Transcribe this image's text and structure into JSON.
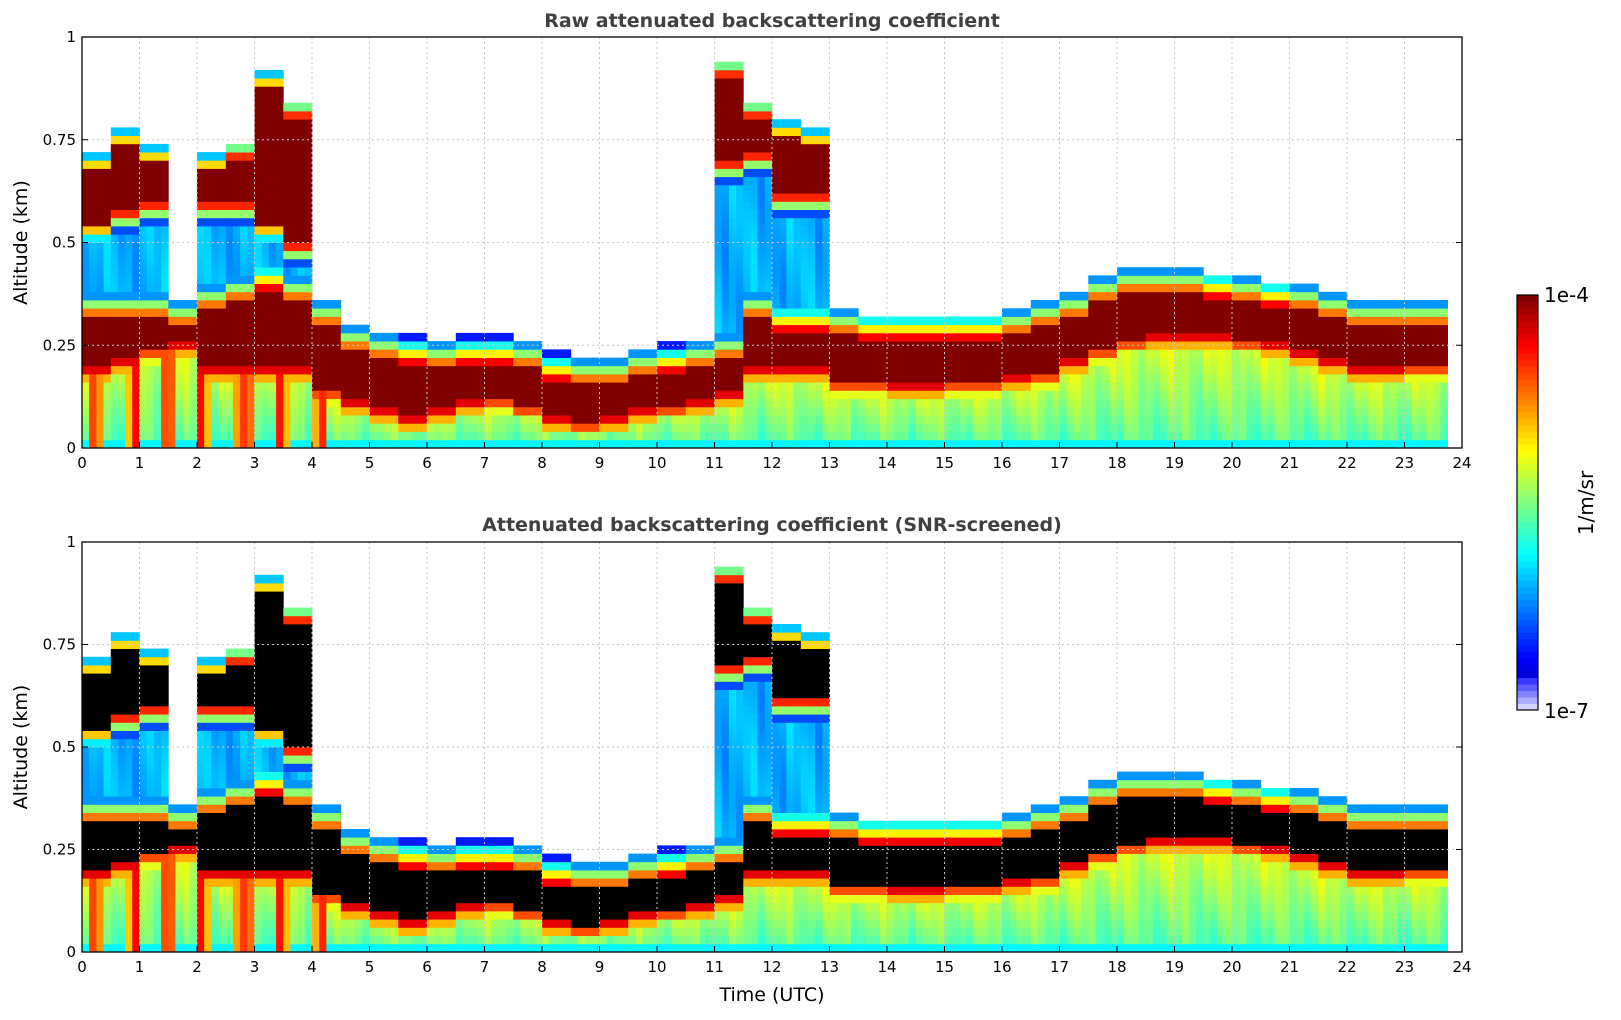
{
  "chart_data": [
    {
      "type": "heatmap",
      "title": "Raw attenuated backscattering coefficient",
      "xlabel": "",
      "ylabel": "Altitude (km)",
      "xlim": [
        0,
        24
      ],
      "ylim": [
        0,
        1
      ],
      "xticks": [
        "0",
        "1",
        "2",
        "3",
        "4",
        "5",
        "6",
        "7",
        "8",
        "9",
        "10",
        "11",
        "12",
        "13",
        "14",
        "15",
        "16",
        "17",
        "18",
        "19",
        "20",
        "21",
        "22",
        "23",
        "24"
      ],
      "yticks": [
        "0",
        "0.25",
        "0.5",
        "0.75",
        "1"
      ],
      "grid": true,
      "saturated_color": "#800000"
    },
    {
      "type": "heatmap",
      "title": "Attenuated backscattering coefficient (SNR-screened)",
      "xlabel": "Time (UTC)",
      "ylabel": "Altitude (km)",
      "xlim": [
        0,
        24
      ],
      "ylim": [
        0,
        1
      ],
      "xticks": [
        "0",
        "1",
        "2",
        "3",
        "4",
        "5",
        "6",
        "7",
        "8",
        "9",
        "10",
        "11",
        "12",
        "13",
        "14",
        "15",
        "16",
        "17",
        "18",
        "19",
        "20",
        "21",
        "22",
        "23",
        "24"
      ],
      "yticks": [
        "0",
        "0.25",
        "0.5",
        "0.75",
        "1"
      ],
      "grid": true,
      "saturated_color": "#000000"
    }
  ],
  "profile_data": {
    "time_step_h": 0.5,
    "time_end_h": 23.75,
    "main_layer_base_km": [
      0.2,
      0.22,
      0.25,
      0.26,
      0.2,
      0.2,
      0.2,
      0.2,
      0.15,
      0.12,
      0.1,
      0.08,
      0.1,
      0.12,
      0.13,
      0.11,
      0.08,
      0.07,
      0.08,
      0.1,
      0.11,
      0.12,
      0.14,
      0.2,
      0.2,
      0.2,
      0.17,
      0.17,
      0.16,
      0.16,
      0.17,
      0.17,
      0.18,
      0.19,
      0.22,
      0.25,
      0.27,
      0.28,
      0.28,
      0.28,
      0.27,
      0.26,
      0.24,
      0.22,
      0.2,
      0.2,
      0.21,
      0.21
    ],
    "main_layer_top_km": [
      0.38,
      0.38,
      0.38,
      0.36,
      0.4,
      0.42,
      0.45,
      0.42,
      0.36,
      0.3,
      0.28,
      0.27,
      0.26,
      0.27,
      0.27,
      0.26,
      0.23,
      0.22,
      0.22,
      0.24,
      0.25,
      0.26,
      0.28,
      0.38,
      0.35,
      0.35,
      0.34,
      0.33,
      0.33,
      0.33,
      0.33,
      0.33,
      0.34,
      0.36,
      0.38,
      0.42,
      0.44,
      0.44,
      0.44,
      0.43,
      0.42,
      0.41,
      0.4,
      0.38,
      0.36,
      0.36,
      0.36,
      0.36
    ],
    "upper_layer_km": [
      [
        0.55,
        0.72
      ],
      [
        0.58,
        0.78
      ],
      [
        0.6,
        0.74
      ],
      null,
      [
        0.6,
        0.72
      ],
      [
        0.6,
        0.75
      ],
      [
        0.55,
        0.92
      ],
      [
        0.5,
        0.85
      ],
      null,
      null,
      null,
      null,
      null,
      null,
      null,
      null,
      null,
      null,
      null,
      null,
      null,
      null,
      [
        0.7,
        0.95
      ],
      [
        0.72,
        0.85
      ],
      [
        0.62,
        0.8
      ],
      [
        0.62,
        0.78
      ],
      null,
      null,
      null,
      null,
      null,
      null,
      null,
      null,
      null,
      null,
      null,
      null,
      null,
      null,
      null,
      null,
      null,
      null,
      null,
      null,
      null,
      null
    ]
  },
  "colorbar": {
    "max_label": "1e-4",
    "min_label": "1e-7",
    "unit_label": "1/m/sr",
    "log10_min": -7,
    "log10_max": -4,
    "colormap": "jet"
  }
}
